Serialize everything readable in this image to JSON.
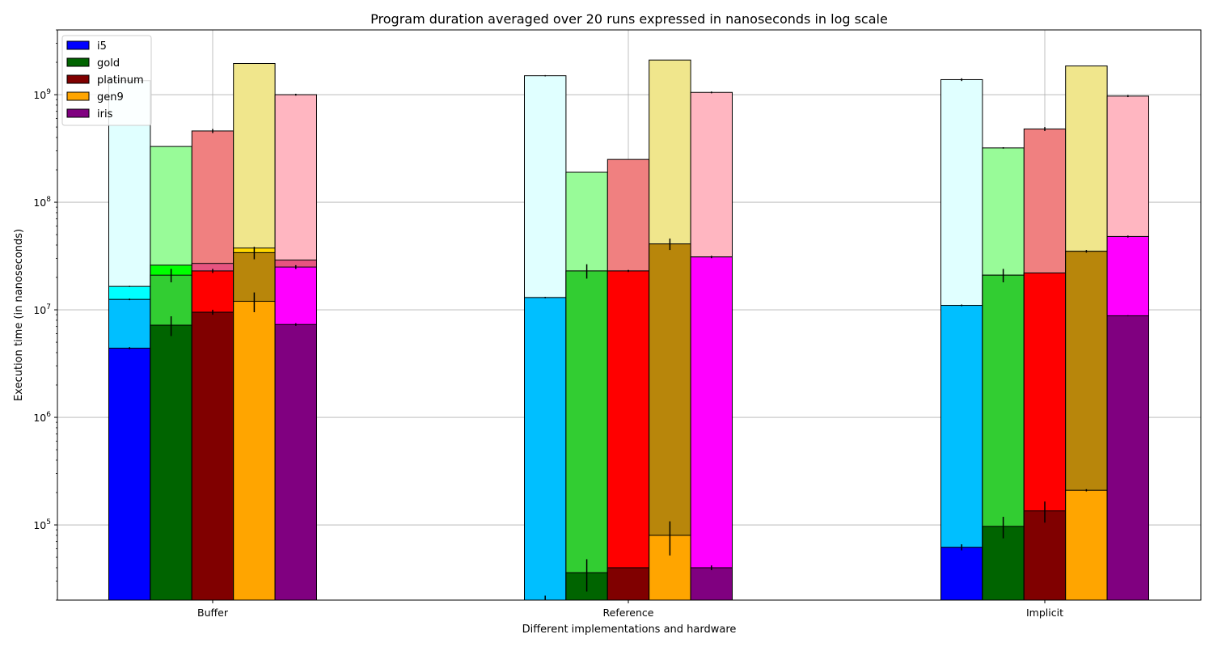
{
  "chart_data": {
    "type": "bar",
    "stacked": true,
    "title": "Program duration averaged over 20 runs expressed in nanoseconds in log scale",
    "xlabel": "Different implementations and hardware",
    "ylabel": "Execution time (in nanoseconds)",
    "yscale": "log",
    "ylim": [
      20000,
      4000000000
    ],
    "yticks": [
      {
        "value": 100000,
        "base": "10",
        "exp": "5"
      },
      {
        "value": 1000000,
        "base": "10",
        "exp": "6"
      },
      {
        "value": 10000000,
        "base": "10",
        "exp": "7"
      },
      {
        "value": 100000000,
        "base": "10",
        "exp": "8"
      },
      {
        "value": 1000000000,
        "base": "10",
        "exp": "9"
      }
    ],
    "grid": true,
    "legend_position": "top-left",
    "categories": [
      "Buffer",
      "Reference",
      "Implicit"
    ],
    "series": [
      {
        "name": "i5",
        "color": "#0000ff",
        "segments": [
          {
            "values": [
              4400000,
              0,
              62000
            ],
            "errors": [
              100000,
              0,
              4000
            ],
            "color": "#0000ff"
          },
          {
            "values": [
              12500000,
              13000000,
              11000000
            ],
            "errors": [
              200000,
              200000,
              200000
            ],
            "color": "#00bfff"
          },
          {
            "values": [
              16500000,
              13000000,
              11000000
            ],
            "errors": [
              200000,
              0,
              0
            ],
            "color": "#00ffff"
          },
          {
            "values": [
              1350000000,
              1500000000,
              1380000000
            ],
            "errors": [
              20000000,
              20000000,
              40000000
            ],
            "color": "#e0ffff"
          }
        ],
        "floor_errors": [
          0,
          22000,
          0
        ]
      },
      {
        "name": "gold",
        "color": "#006400",
        "segments": [
          {
            "values": [
              7200000,
              36000,
              97000
            ],
            "errors": [
              1500000,
              12000,
              22000
            ],
            "color": "#006400"
          },
          {
            "values": [
              21000000,
              23000000,
              21000000
            ],
            "errors": [
              3000000,
              3500000,
              3000000
            ],
            "color": "#32cd32"
          },
          {
            "values": [
              26000000,
              23000000,
              21000000
            ],
            "errors": [
              0,
              0,
              0
            ],
            "color": "#00ff00"
          },
          {
            "values": [
              330000000,
              190000000,
              320000000
            ],
            "errors": [
              0,
              0,
              5000000
            ],
            "color": "#98fb98"
          }
        ]
      },
      {
        "name": "platinum",
        "color": "#800000",
        "segments": [
          {
            "values": [
              9500000,
              40000,
              135000
            ],
            "errors": [
              500000,
              0,
              30000
            ],
            "color": "#800000"
          },
          {
            "values": [
              23000000,
              23000000,
              22000000
            ],
            "errors": [
              1000000,
              500000,
              0
            ],
            "color": "#ff0000"
          },
          {
            "values": [
              27000000,
              23000000,
              22000000
            ],
            "errors": [
              0,
              0,
              0
            ],
            "color": "#e75480"
          },
          {
            "values": [
              460000000,
              250000000,
              480000000
            ],
            "errors": [
              20000000,
              0,
              20000000
            ],
            "color": "#f08080"
          }
        ]
      },
      {
        "name": "gen9",
        "color": "#ffa500",
        "segments": [
          {
            "values": [
              12000000,
              80000,
              210000
            ],
            "errors": [
              2500000,
              28000,
              5000
            ],
            "color": "#ffa500"
          },
          {
            "values": [
              34000000,
              41000000,
              35000000
            ],
            "errors": [
              4500000,
              5000000,
              1000000
            ],
            "color": "#b8860b"
          },
          {
            "values": [
              37500000,
              41000000,
              35000000
            ],
            "errors": [
              0,
              0,
              0
            ],
            "color": "#ffd700"
          },
          {
            "values": [
              1950000000,
              2100000000,
              1850000000
            ],
            "errors": [
              0,
              0,
              0
            ],
            "color": "#f0e68c"
          }
        ]
      },
      {
        "name": "iris",
        "color": "#800080",
        "segments": [
          {
            "values": [
              7300000,
              40000,
              8800000
            ],
            "errors": [
              200000,
              2000,
              100000
            ],
            "color": "#800080"
          },
          {
            "values": [
              25000000,
              31000000,
              48000000
            ],
            "errors": [
              1000000,
              800000,
              1000000
            ],
            "color": "#ff00ff"
          },
          {
            "values": [
              29000000,
              31000000,
              48000000
            ],
            "errors": [
              0,
              0,
              0
            ],
            "color": "#e75480"
          },
          {
            "values": [
              1000000000,
              1050000000,
              970000000
            ],
            "errors": [
              20000000,
              20000000,
              20000000
            ],
            "color": "#ffb6c1"
          }
        ]
      }
    ]
  }
}
